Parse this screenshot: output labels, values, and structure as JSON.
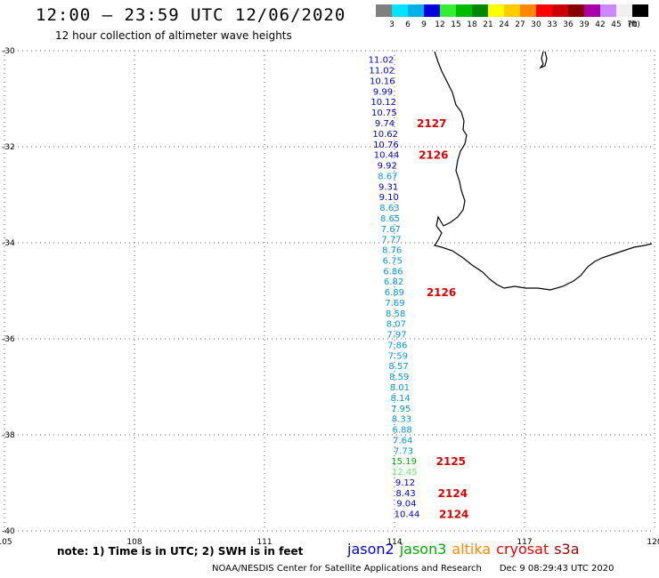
{
  "header": {
    "title": "12:00 – 23:59 UTC 12/06/2020",
    "subtitle": "12 hour collection of altimeter wave heights"
  },
  "legend": {
    "unit": "(ft)",
    "bins": [
      {
        "label": "3",
        "color": "#7f7f7f"
      },
      {
        "label": "6",
        "color": "#00e5ff"
      },
      {
        "label": "9",
        "color": "#00b0e8"
      },
      {
        "label": "12",
        "color": "#0000e0"
      },
      {
        "label": "15",
        "color": "#33ee33"
      },
      {
        "label": "18",
        "color": "#00bb00"
      },
      {
        "label": "21",
        "color": "#008800"
      },
      {
        "label": "24",
        "color": "#ffff00"
      },
      {
        "label": "27",
        "color": "#ffcc00"
      },
      {
        "label": "30",
        "color": "#ff8800"
      },
      {
        "label": "33",
        "color": "#ff0000"
      },
      {
        "label": "36",
        "color": "#cc0000"
      },
      {
        "label": "39",
        "color": "#880000"
      },
      {
        "label": "42",
        "color": "#aa00aa"
      },
      {
        "label": "45",
        "color": "#cc88ff"
      },
      {
        "label": "70",
        "color": "#f0f0f0"
      },
      {
        "label": "",
        "color": "#000000"
      }
    ]
  },
  "map": {
    "lon_range": [
      105,
      120
    ],
    "lat_range": [
      -30,
      -40
    ],
    "lon_ticks": [
      "105",
      "108",
      "111",
      "114",
      "117",
      "120"
    ],
    "lat_ticks": [
      "-30",
      "-32",
      "-34",
      "-36",
      "-38",
      "-40"
    ],
    "measurements": [
      {
        "lat": -30.18,
        "lon": 114.0,
        "value": "11.02",
        "color": "#0000cc"
      },
      {
        "lat": -30.4,
        "lon": 114.0,
        "value": "11.02",
        "color": "#0000cc"
      },
      {
        "lat": -30.62,
        "lon": 114.0,
        "value": "10.16",
        "color": "#0000cc"
      },
      {
        "lat": -30.84,
        "lon": 114.0,
        "value": "9.99",
        "color": "#0000cc"
      },
      {
        "lat": -31.06,
        "lon": 114.0,
        "value": "10.12",
        "color": "#0000cc"
      },
      {
        "lat": -31.28,
        "lon": 114.0,
        "value": "10.75",
        "color": "#0000cc"
      },
      {
        "lat": -31.5,
        "lon": 114.0,
        "value": "9.74",
        "color": "#0000cc"
      },
      {
        "lat": -31.72,
        "lon": 114.0,
        "value": "10.62",
        "color": "#0000cc"
      },
      {
        "lat": -31.94,
        "lon": 114.0,
        "value": "10.76",
        "color": "#0000cc"
      },
      {
        "lat": -32.16,
        "lon": 114.0,
        "value": "10.44",
        "color": "#0000cc"
      },
      {
        "lat": -32.38,
        "lon": 114.0,
        "value": "9.92",
        "color": "#0000cc"
      },
      {
        "lat": -32.6,
        "lon": 114.0,
        "value": "8.67",
        "color": "#0099dd"
      },
      {
        "lat": -32.82,
        "lon": 114.0,
        "value": "9.31",
        "color": "#0000cc"
      },
      {
        "lat": -33.04,
        "lon": 114.0,
        "value": "9.10",
        "color": "#0000cc"
      },
      {
        "lat": -33.26,
        "lon": 114.0,
        "value": "8.63",
        "color": "#0099dd"
      },
      {
        "lat": -33.48,
        "lon": 114.0,
        "value": "8.65",
        "color": "#0099dd"
      },
      {
        "lat": -33.7,
        "lon": 114.0,
        "value": "7.67",
        "color": "#0099dd"
      },
      {
        "lat": -33.92,
        "lon": 114.0,
        "value": "7.77",
        "color": "#0099dd"
      },
      {
        "lat": -34.14,
        "lon": 114.0,
        "value": "8.76",
        "color": "#0099dd"
      },
      {
        "lat": -34.36,
        "lon": 114.0,
        "value": "6.75",
        "color": "#0099dd"
      },
      {
        "lat": -34.58,
        "lon": 114.0,
        "value": "6.86",
        "color": "#0099dd"
      },
      {
        "lat": -34.8,
        "lon": 114.0,
        "value": "6.82",
        "color": "#0099dd"
      },
      {
        "lat": -35.02,
        "lon": 114.0,
        "value": "6.89",
        "color": "#0099dd"
      },
      {
        "lat": -35.24,
        "lon": 114.0,
        "value": "7.69",
        "color": "#0099dd"
      },
      {
        "lat": -35.46,
        "lon": 114.0,
        "value": "8.58",
        "color": "#0099dd"
      },
      {
        "lat": -35.68,
        "lon": 114.0,
        "value": "8.07",
        "color": "#0099dd"
      },
      {
        "lat": -35.9,
        "lon": 114.0,
        "value": "7.97",
        "color": "#0099dd"
      },
      {
        "lat": -36.12,
        "lon": 114.0,
        "value": "7.86",
        "color": "#0099dd"
      },
      {
        "lat": -36.34,
        "lon": 114.0,
        "value": "7.59",
        "color": "#0099dd"
      },
      {
        "lat": -36.56,
        "lon": 114.0,
        "value": "8.57",
        "color": "#0099dd"
      },
      {
        "lat": -36.78,
        "lon": 114.0,
        "value": "8.59",
        "color": "#0099dd"
      },
      {
        "lat": -37.0,
        "lon": 114.0,
        "value": "8.01",
        "color": "#0099dd"
      },
      {
        "lat": -37.22,
        "lon": 114.0,
        "value": "8.14",
        "color": "#0099dd"
      },
      {
        "lat": -37.44,
        "lon": 114.0,
        "value": "7.95",
        "color": "#0099dd"
      },
      {
        "lat": -37.66,
        "lon": 114.0,
        "value": "8.33",
        "color": "#0099dd"
      },
      {
        "lat": -37.88,
        "lon": 114.0,
        "value": "6.88",
        "color": "#0099dd"
      },
      {
        "lat": -38.1,
        "lon": 114.0,
        "value": "7.64",
        "color": "#0099dd"
      },
      {
        "lat": -38.32,
        "lon": 114.0,
        "value": "7.73",
        "color": "#0099dd"
      },
      {
        "lat": -38.54,
        "lon": 114.0,
        "value": "15.19",
        "color": "#00aa00"
      },
      {
        "lat": -38.76,
        "lon": 114.0,
        "value": "12.45",
        "color": "#66ee66"
      },
      {
        "lat": -38.98,
        "lon": 114.0,
        "value": "9.12",
        "color": "#0000cc"
      },
      {
        "lat": -39.2,
        "lon": 114.0,
        "value": "8.43",
        "color": "#0000cc"
      },
      {
        "lat": -39.42,
        "lon": 114.0,
        "value": "9.04",
        "color": "#0000cc"
      },
      {
        "lat": -39.64,
        "lon": 114.0,
        "value": "10.44",
        "color": "#0000cc"
      }
    ],
    "time_labels": [
      {
        "label": "2127",
        "lat": -31.5,
        "lon": 114.0
      },
      {
        "label": "2126",
        "lat": -32.16,
        "lon": 114.0
      },
      {
        "label": "2126",
        "lat": -35.02,
        "lon": 114.0
      },
      {
        "label": "2125",
        "lat": -38.54,
        "lon": 114.0
      },
      {
        "label": "2124",
        "lat": -39.2,
        "lon": 114.0
      },
      {
        "label": "2124",
        "lat": -39.64,
        "lon": 114.0
      }
    ]
  },
  "footer": {
    "note": "note: 1) Time is in UTC; 2) SWH is in feet",
    "satellites": [
      {
        "name": "jason2",
        "color": "#0000dd"
      },
      {
        "name": "jason3",
        "color": "#00aa00"
      },
      {
        "name": "altika",
        "color": "#ff8800"
      },
      {
        "name": "cryosat",
        "color": "#ee0000"
      },
      {
        "name": "s3a",
        "color": "#990000"
      }
    ],
    "credit": "NOAA/NESDIS Center for Satellite Applications and Research",
    "timestamp": "Dec  9 08:29:43 UTC 2020"
  }
}
